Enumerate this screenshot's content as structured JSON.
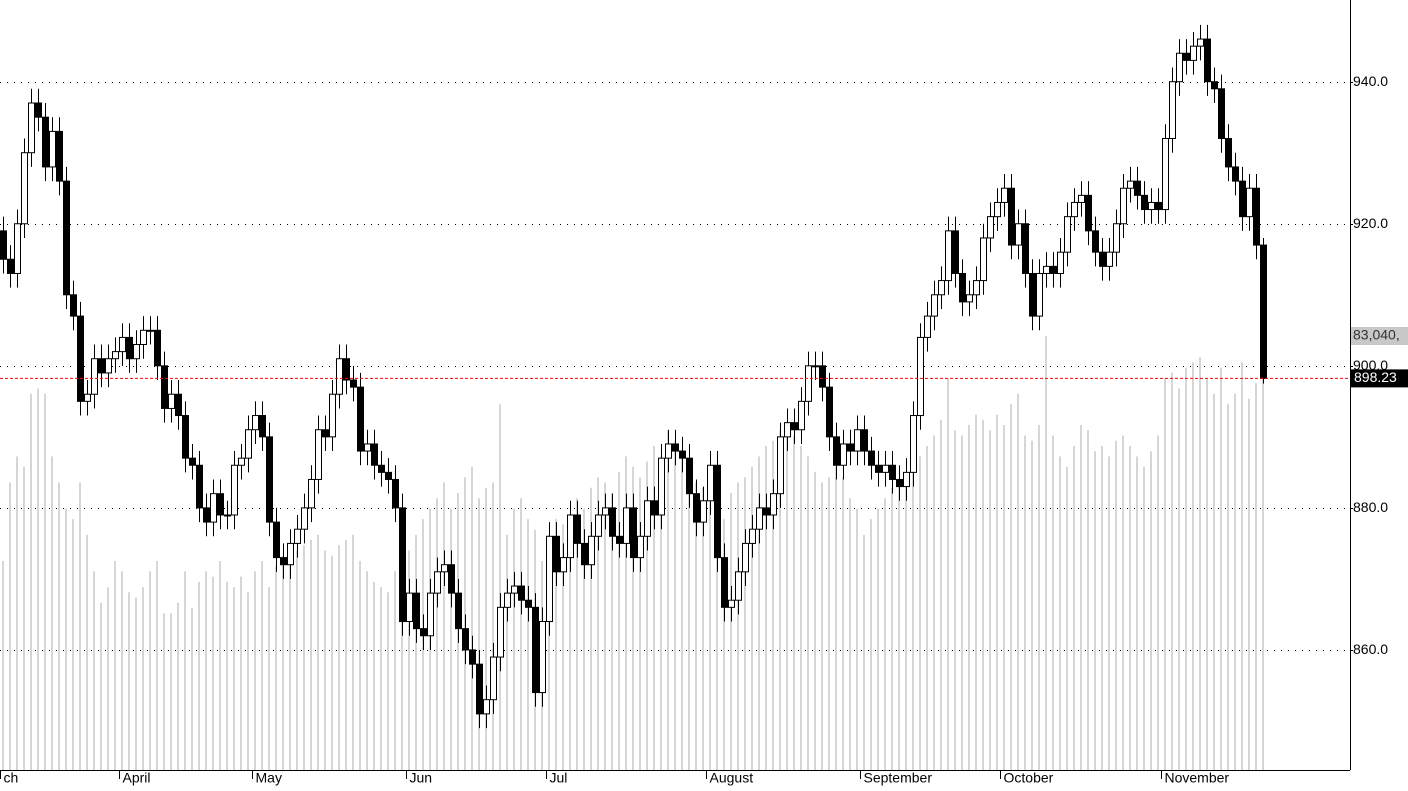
{
  "chart_data": {
    "type": "candlestick",
    "open": [
      919,
      915,
      913,
      920,
      930,
      937,
      935,
      928,
      933,
      926,
      910,
      907,
      895,
      896,
      901,
      899,
      901,
      902,
      904,
      901,
      903,
      905,
      905,
      900,
      894,
      896,
      893,
      887,
      886,
      880,
      878,
      882,
      879,
      879,
      886,
      887,
      891,
      893,
      890,
      878,
      873,
      872,
      875,
      877,
      880,
      884,
      891,
      890,
      896,
      901,
      898,
      897,
      888,
      889,
      886,
      885,
      884,
      880,
      864,
      868,
      863,
      862,
      868,
      871,
      872,
      868,
      863,
      860,
      858,
      851,
      853,
      859,
      866,
      868,
      869,
      867,
      866,
      854,
      864,
      876,
      871,
      873,
      879,
      875,
      872,
      876,
      879,
      880,
      876,
      875,
      880,
      873,
      876,
      881,
      879,
      887,
      889,
      888,
      887,
      882,
      878,
      881,
      886,
      873,
      866,
      867,
      871,
      875,
      877,
      880,
      879,
      882,
      890,
      892,
      891,
      895,
      900,
      900,
      897,
      890,
      886,
      889,
      888,
      891,
      888,
      886,
      885,
      886,
      884,
      883,
      885,
      893,
      904,
      907,
      910,
      912,
      919,
      913,
      909,
      910,
      912,
      918,
      921,
      923,
      925,
      917,
      920,
      913,
      907,
      913,
      914,
      913,
      916,
      921,
      923,
      924,
      919,
      916,
      914,
      916,
      920,
      925,
      926,
      924,
      922,
      923,
      922,
      932,
      940,
      944,
      943,
      945,
      946,
      940,
      939,
      932,
      928,
      926,
      921,
      925,
      917
    ],
    "high": [
      921,
      917,
      922,
      932,
      939,
      939,
      937,
      935,
      935,
      928,
      912,
      909,
      898,
      903,
      903,
      903,
      904,
      906,
      906,
      905,
      907,
      907,
      907,
      902,
      898,
      898,
      895,
      889,
      888,
      882,
      884,
      884,
      881,
      888,
      889,
      893,
      895,
      895,
      892,
      880,
      875,
      877,
      879,
      882,
      886,
      893,
      893,
      898,
      903,
      903,
      900,
      899,
      891,
      891,
      888,
      887,
      886,
      882,
      870,
      870,
      865,
      870,
      873,
      874,
      874,
      870,
      865,
      862,
      860,
      855,
      861,
      868,
      870,
      871,
      871,
      869,
      868,
      866,
      878,
      878,
      875,
      881,
      881,
      877,
      878,
      881,
      882,
      882,
      878,
      882,
      882,
      878,
      883,
      883,
      889,
      891,
      891,
      890,
      889,
      884,
      883,
      888,
      888,
      875,
      869,
      873,
      877,
      879,
      882,
      882,
      884,
      892,
      894,
      894,
      897,
      902,
      902,
      902,
      899,
      892,
      891,
      891,
      893,
      893,
      890,
      888,
      888,
      888,
      886,
      887,
      895,
      906,
      909,
      912,
      914,
      921,
      921,
      915,
      912,
      914,
      920,
      923,
      925,
      927,
      927,
      922,
      922,
      915,
      915,
      916,
      916,
      918,
      923,
      925,
      926,
      926,
      921,
      918,
      918,
      922,
      927,
      928,
      928,
      926,
      925,
      925,
      934,
      942,
      946,
      946,
      947,
      948,
      948,
      942,
      941,
      934,
      930,
      928,
      927,
      927,
      918
    ],
    "low": [
      913,
      911,
      911,
      918,
      928,
      933,
      926,
      926,
      924,
      908,
      905,
      893,
      893,
      894,
      897,
      897,
      899,
      900,
      899,
      899,
      901,
      903,
      898,
      892,
      892,
      891,
      885,
      884,
      878,
      876,
      876,
      877,
      877,
      877,
      884,
      885,
      889,
      888,
      876,
      871,
      870,
      870,
      873,
      875,
      878,
      882,
      888,
      888,
      894,
      896,
      895,
      886,
      886,
      884,
      883,
      882,
      878,
      862,
      862,
      861,
      860,
      860,
      866,
      869,
      866,
      861,
      858,
      856,
      849,
      849,
      851,
      857,
      864,
      866,
      865,
      864,
      852,
      852,
      862,
      869,
      869,
      871,
      873,
      870,
      870,
      874,
      877,
      874,
      873,
      873,
      871,
      871,
      874,
      877,
      877,
      885,
      886,
      885,
      880,
      876,
      876,
      879,
      871,
      864,
      864,
      865,
      869,
      873,
      875,
      877,
      877,
      880,
      888,
      889,
      889,
      893,
      898,
      895,
      888,
      884,
      884,
      886,
      886,
      886,
      884,
      883,
      883,
      882,
      881,
      881,
      883,
      891,
      902,
      905,
      908,
      910,
      911,
      907,
      907,
      908,
      910,
      916,
      919,
      921,
      915,
      915,
      911,
      905,
      905,
      911,
      911,
      911,
      914,
      919,
      921,
      917,
      914,
      912,
      912,
      914,
      918,
      923,
      922,
      920,
      920,
      920,
      920,
      930,
      938,
      941,
      941,
      943,
      938,
      937,
      930,
      926,
      924,
      919,
      919,
      915,
      897.5
    ],
    "close": [
      915,
      913,
      920,
      930,
      937,
      935,
      928,
      933,
      926,
      910,
      907,
      895,
      896,
      901,
      899,
      901,
      902,
      904,
      901,
      903,
      905,
      905,
      900,
      894,
      896,
      893,
      887,
      886,
      880,
      878,
      882,
      879,
      879,
      886,
      887,
      891,
      893,
      890,
      878,
      873,
      872,
      875,
      877,
      880,
      884,
      891,
      890,
      896,
      901,
      898,
      897,
      888,
      889,
      886,
      885,
      884,
      880,
      864,
      868,
      863,
      862,
      868,
      871,
      872,
      868,
      863,
      860,
      858,
      851,
      853,
      859,
      866,
      868,
      869,
      867,
      866,
      854,
      864,
      876,
      871,
      873,
      879,
      875,
      872,
      876,
      879,
      880,
      876,
      875,
      880,
      873,
      876,
      881,
      879,
      887,
      889,
      888,
      887,
      882,
      878,
      881,
      886,
      873,
      866,
      867,
      871,
      875,
      877,
      880,
      879,
      882,
      890,
      892,
      891,
      895,
      900,
      900,
      897,
      890,
      886,
      889,
      888,
      891,
      888,
      886,
      885,
      886,
      884,
      883,
      885,
      893,
      904,
      907,
      910,
      912,
      919,
      913,
      909,
      910,
      912,
      918,
      921,
      923,
      925,
      917,
      920,
      913,
      907,
      913,
      914,
      913,
      916,
      921,
      923,
      924,
      919,
      916,
      914,
      916,
      920,
      925,
      926,
      924,
      922,
      923,
      922,
      932,
      940,
      944,
      943,
      945,
      946,
      940,
      939,
      932,
      928,
      926,
      921,
      925,
      917,
      898.23
    ],
    "volume": [
      40000,
      55000,
      60000,
      58000,
      72000,
      73000,
      72000,
      60000,
      55000,
      50000,
      48000,
      55000,
      45000,
      38000,
      32000,
      35000,
      40000,
      38000,
      34000,
      33000,
      35000,
      38000,
      40000,
      30000,
      30000,
      32000,
      38000,
      31000,
      36000,
      38000,
      37000,
      40000,
      36000,
      35000,
      37000,
      34000,
      38000,
      40000,
      35000,
      39000,
      41000,
      40000,
      42000,
      43000,
      44000,
      45000,
      42000,
      41000,
      43000,
      44000,
      45000,
      40000,
      38000,
      36000,
      35000,
      34000,
      38000,
      40000,
      42000,
      45000,
      48000,
      50000,
      52000,
      55000,
      50000,
      53000,
      56000,
      58000,
      52000,
      54000,
      55000,
      70000,
      45000,
      50000,
      52000,
      48000,
      46000,
      40000,
      45000,
      48000,
      47000,
      49000,
      52000,
      50000,
      54000,
      56000,
      55000,
      53000,
      57000,
      60000,
      58000,
      56000,
      59000,
      62000,
      60000,
      65000,
      63000,
      61000,
      58000,
      55000,
      54000,
      52000,
      50000,
      48000,
      53000,
      55000,
      56000,
      58000,
      60000,
      62000,
      63000,
      65000,
      66000,
      64000,
      62000,
      60000,
      57000,
      55000,
      56000,
      58000,
      56000,
      52000,
      50000,
      45000,
      48000,
      50000,
      52000,
      54000,
      55000,
      57000,
      58000,
      60000,
      62000,
      64000,
      67000,
      75000,
      65000,
      64000,
      66000,
      68000,
      67000,
      65000,
      68000,
      66000,
      70000,
      72000,
      64000,
      63000,
      66000,
      83000,
      64000,
      60000,
      58000,
      62000,
      66000,
      65000,
      61000,
      62000,
      60000,
      63000,
      64000,
      62000,
      60000,
      58000,
      61000,
      64000,
      75000,
      76000,
      73000,
      77000,
      78000,
      79000,
      75000,
      72000,
      77000,
      70000,
      72000,
      78000,
      71000,
      74000,
      83040
    ],
    "up_color": "#ffffff",
    "down_color": "#000000",
    "volume_color": "#c8c8c8",
    "xlim": [
      -0.43,
      192.43
    ],
    "xticks": [
      {
        "value": -0.5,
        "label": "ch"
      },
      {
        "value": 16.5,
        "label": "April"
      },
      {
        "value": 35.5,
        "label": "May"
      },
      {
        "value": 57.5,
        "label": "Jun"
      },
      {
        "value": 77.5,
        "label": "Jul"
      },
      {
        "value": 100.5,
        "label": "August"
      },
      {
        "value": 122.5,
        "label": "September"
      },
      {
        "value": 142.5,
        "label": "October"
      },
      {
        "value": 165.5,
        "label": "November"
      }
    ],
    "ylim": [
      843.1,
      951.5
    ],
    "yticks": [
      {
        "value": 860,
        "label": "860.0"
      },
      {
        "value": 880,
        "label": "880.0"
      },
      {
        "value": 900,
        "label": "900.0"
      },
      {
        "value": 920,
        "label": "920.0"
      },
      {
        "value": 940,
        "label": "940.0"
      }
    ],
    "y2lim": [
      0,
      147330
    ],
    "y2ticks": [
      {
        "value": 83040,
        "label": "83,040,"
      }
    ],
    "last_price": {
      "value": 898.23,
      "color": "#ff0000"
    },
    "grid": true
  }
}
